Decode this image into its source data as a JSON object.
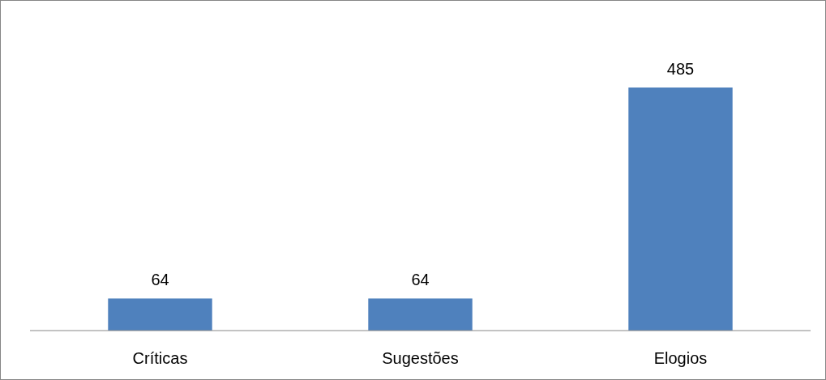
{
  "chart_data": {
    "type": "bar",
    "categories": [
      "Críticas",
      "Sugestões",
      "Elogios"
    ],
    "values": [
      64,
      64,
      485
    ],
    "color": "#4f81bd",
    "data_labels": true
  }
}
